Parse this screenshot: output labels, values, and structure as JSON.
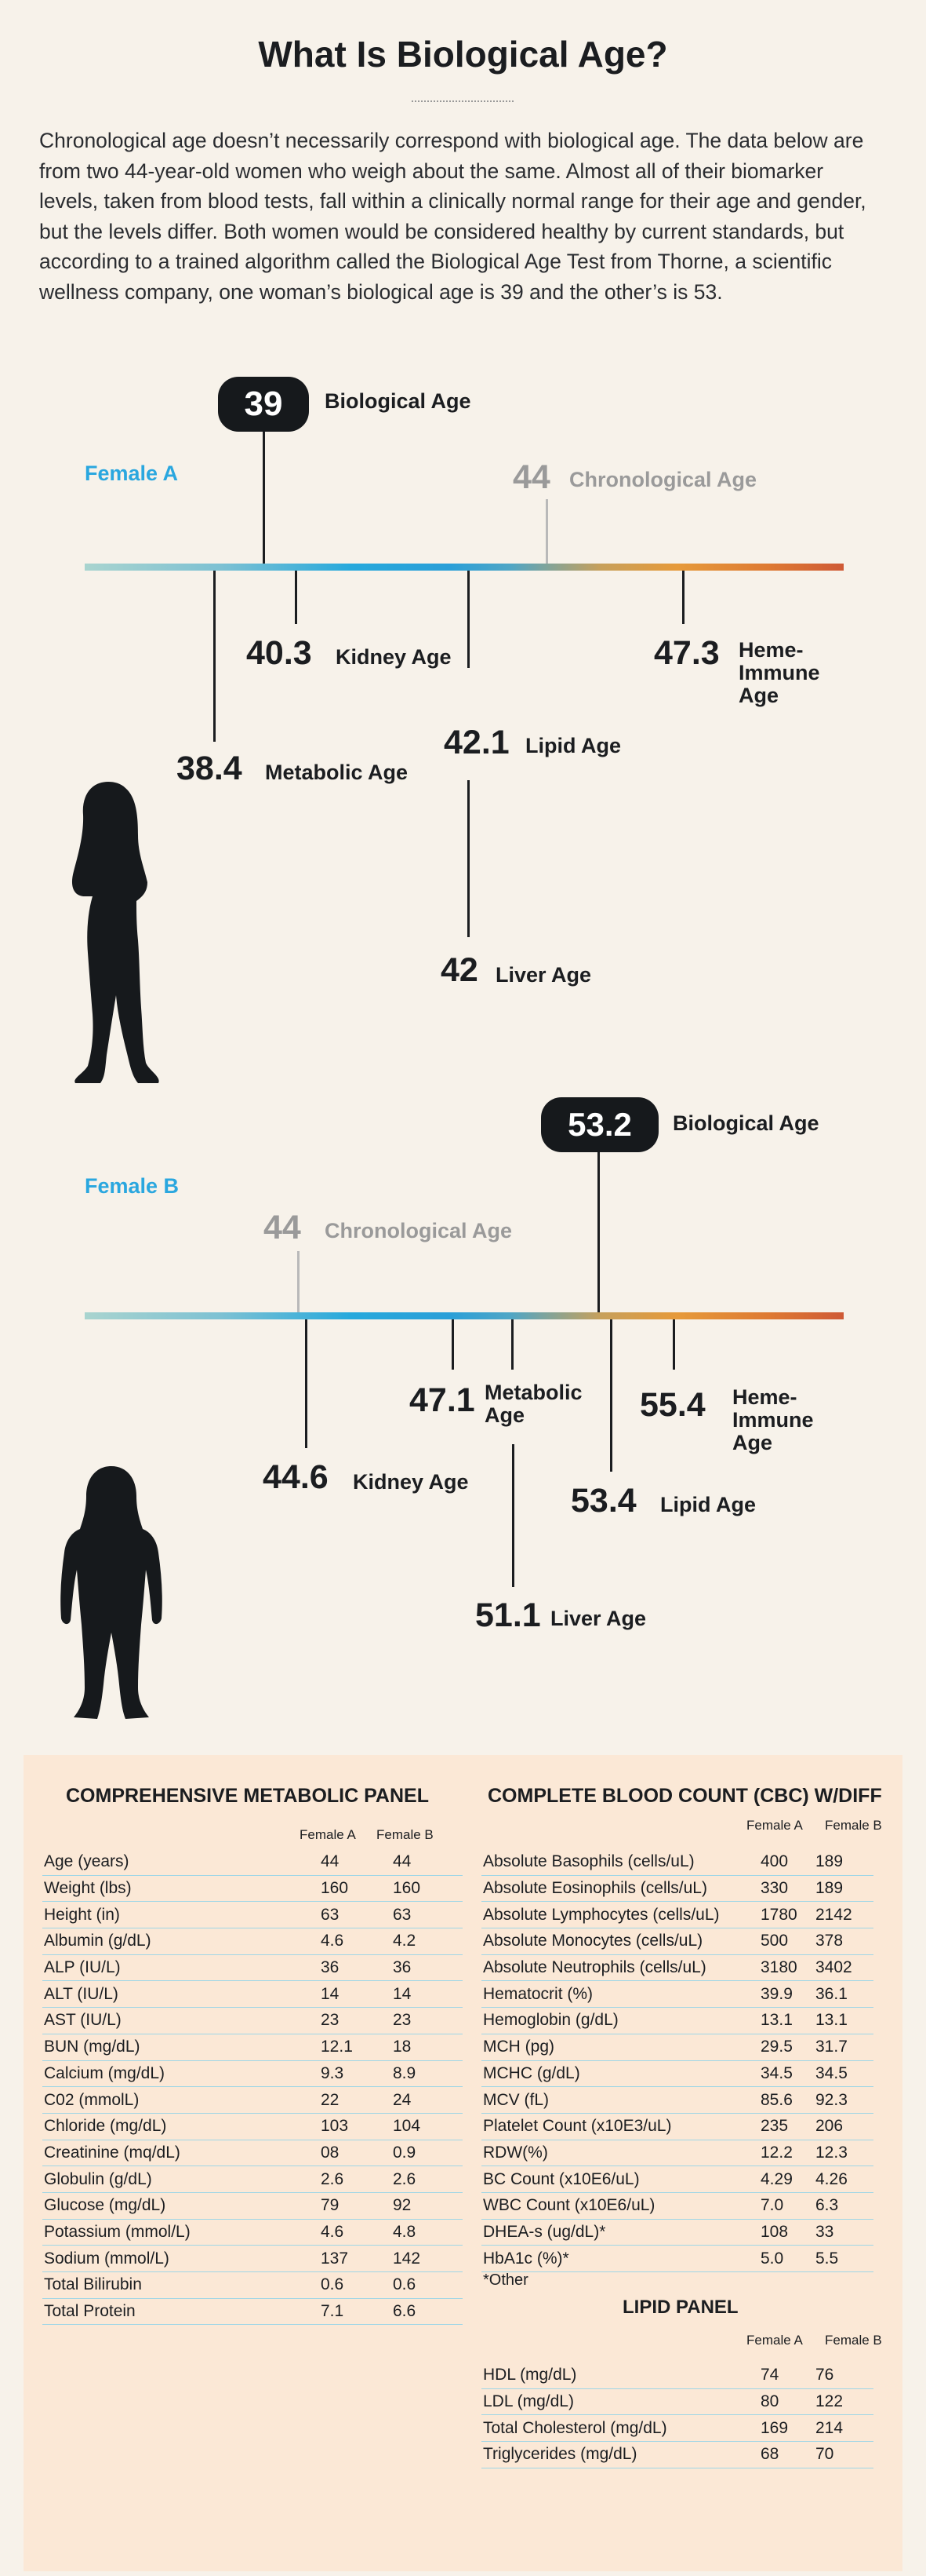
{
  "title": "What Is Biological Age?",
  "intro": "Chronological age doesn’t necessarily correspond with biological age. The data below are from two 44-year-old women who weigh about the same. Almost all of their biomarker levels, taken from blood tests, fall within a clinically normal range for their age and gender, but the levels differ. Both women would be considered healthy by current standards, but according to a trained algorithm called the Biological Age Test from Thorne, a scientific wellness company, one woman’s biological age is 39 and the other’s is 53.",
  "female_a": {
    "name": "Female A",
    "biological_age": "39",
    "biological_label": "Biological Age",
    "chronological_age": "44",
    "chronological_label": "Chronological Age",
    "kidney": {
      "value": "40.3",
      "label": "Kidney Age"
    },
    "heme": {
      "value": "47.3",
      "label1": "Heme-",
      "label2": "Immune",
      "label3": "Age"
    },
    "metabolic": {
      "value": "38.4",
      "label": "Metabolic Age"
    },
    "lipid": {
      "value": "42.1",
      "label": "Lipid Age"
    },
    "liver": {
      "value": "42",
      "label": "Liver Age"
    }
  },
  "female_b": {
    "name": "Female B",
    "biological_age": "53.2",
    "biological_label": "Biological Age",
    "chronological_age": "44",
    "chronological_label": "Chronological Age",
    "metabolic": {
      "value": "47.1",
      "label1": "Metabolic",
      "label2": "Age"
    },
    "heme": {
      "value": "55.4",
      "label1": "Heme-",
      "label2": "Immune",
      "label3": "Age"
    },
    "kidney": {
      "value": "44.6",
      "label": "Kidney Age"
    },
    "lipid": {
      "value": "53.4",
      "label": "Lipid Age"
    },
    "liver": {
      "value": "51.1",
      "label": "Liver Age"
    }
  },
  "cmp": {
    "title": "COMPREHENSIVE METABOLIC PANEL",
    "col_a": "Female A",
    "col_b": "Female B",
    "rows": [
      [
        "Age (years)",
        "44",
        "44"
      ],
      [
        "Weight (lbs)",
        "160",
        "160"
      ],
      [
        "Height (in)",
        "63",
        "63"
      ],
      [
        "Albumin (g/dL)",
        "4.6",
        "4.2"
      ],
      [
        "ALP (IU/L)",
        "36",
        "36"
      ],
      [
        "ALT (IU/L)",
        "14",
        "14"
      ],
      [
        "AST (IU/L)",
        "23",
        "23"
      ],
      [
        "BUN (mg/dL)",
        "12.1",
        "18"
      ],
      [
        "Calcium (mg/dL)",
        "9.3",
        "8.9"
      ],
      [
        "C02 (mmolL)",
        "22",
        "24"
      ],
      [
        "Chloride (mg/dL)",
        "103",
        "104"
      ],
      [
        "Creatinine (mq/dL)",
        "08",
        "0.9"
      ],
      [
        "Globulin (g/dL)",
        "2.6",
        "2.6"
      ],
      [
        "Glucose (mg/dL)",
        "79",
        "92"
      ],
      [
        "Potassium (mmol/L)",
        "4.6",
        "4.8"
      ],
      [
        "Sodium (mmol/L)",
        "137",
        "142"
      ],
      [
        "Total Bilirubin",
        "0.6",
        "0.6"
      ],
      [
        "Total Protein",
        "7.1",
        "6.6"
      ]
    ]
  },
  "cbc": {
    "title": "COMPLETE BLOOD COUNT (CBC) W/DIFF",
    "col_a": "Female A",
    "col_b": "Female B",
    "rows": [
      [
        "Absolute Basophils (cells/uL)",
        "400",
        "189"
      ],
      [
        "Absolute Eosinophils (cells/uL)",
        "330",
        "189"
      ],
      [
        "Absolute Lymphocytes (cells/uL)",
        "1780",
        "2142"
      ],
      [
        "Absolute Monocytes (cells/uL)",
        "500",
        "378"
      ],
      [
        "Absolute Neutrophils (cells/uL)",
        "3180",
        "3402"
      ],
      [
        "Hematocrit (%)",
        "39.9",
        "36.1"
      ],
      [
        "Hemoglobin (g/dL)",
        "13.1",
        "13.1"
      ],
      [
        "MCH (pg)",
        "29.5",
        "31.7"
      ],
      [
        "MCHC (g/dL)",
        "34.5",
        "34.5"
      ],
      [
        "MCV (fL)",
        "85.6",
        "92.3"
      ],
      [
        "Platelet Count (x10E3/uL)",
        "235",
        "206"
      ],
      [
        "RDW(%)",
        "12.2",
        "12.3"
      ],
      [
        "BC Count (x10E6/uL)",
        "4.29",
        "4.26"
      ],
      [
        "WBC Count (x10E6/uL)",
        "7.0",
        "6.3"
      ],
      [
        "DHEA-s (ug/dL)*",
        "108",
        "33"
      ],
      [
        "HbA1c (%)*",
        "5.0",
        "5.5"
      ]
    ],
    "footnote": "*Other"
  },
  "lipid": {
    "title": "LIPID PANEL",
    "col_a": "Female A",
    "col_b": "Female B",
    "rows": [
      [
        "HDL (mg/dL)",
        "74",
        "76"
      ],
      [
        "LDL (mg/dL)",
        "80",
        "122"
      ],
      [
        "Total Cholesterol (mg/dL)",
        "169",
        "214"
      ],
      [
        "Triglycerides (mg/dL)",
        "68",
        "70"
      ]
    ]
  },
  "colors": {
    "cyan": "#2aa7df",
    "dark": "#16191c",
    "bg": "#f7f2ea",
    "table_bg": "#fbe8d6",
    "rule": "#9fd6e6"
  }
}
